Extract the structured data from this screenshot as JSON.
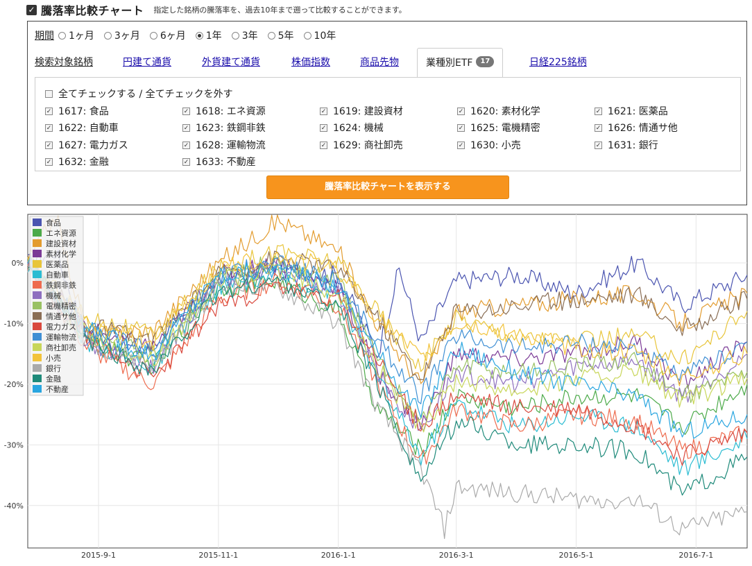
{
  "header": {
    "title": "騰落率比較チャート",
    "description": "指定した銘柄の騰落率を、過去10年まで遡って比較することができます。"
  },
  "period": {
    "label": "期間",
    "options": [
      "1ヶ月",
      "3ヶ月",
      "6ヶ月",
      "1年",
      "3年",
      "5年",
      "10年"
    ],
    "selected": "1年"
  },
  "tabs": [
    {
      "label": "検索対象銘柄"
    },
    {
      "label": "円建て通貨"
    },
    {
      "label": "外貨建て通貨"
    },
    {
      "label": "株価指数"
    },
    {
      "label": "商品先物"
    },
    {
      "label": "業種別ETF",
      "badge": "17",
      "active": true
    },
    {
      "label": "日経225銘柄"
    }
  ],
  "check_all_label": "全てチェックする / 全てチェックを外す",
  "etfs": [
    {
      "label": "1617: 食品",
      "checked": true
    },
    {
      "label": "1618: エネ資源",
      "checked": true
    },
    {
      "label": "1619: 建設資材",
      "checked": true
    },
    {
      "label": "1620: 素材化学",
      "checked": true
    },
    {
      "label": "1621: 医薬品",
      "checked": true
    },
    {
      "label": "1622: 自動車",
      "checked": true
    },
    {
      "label": "1623: 鉄鋼非鉄",
      "checked": true
    },
    {
      "label": "1624: 機械",
      "checked": true
    },
    {
      "label": "1625: 電機精密",
      "checked": true
    },
    {
      "label": "1626: 情通サ他",
      "checked": true
    },
    {
      "label": "1627: 電力ガス",
      "checked": true
    },
    {
      "label": "1628: 運輸物流",
      "checked": true
    },
    {
      "label": "1629: 商社卸売",
      "checked": true
    },
    {
      "label": "1630: 小売",
      "checked": true
    },
    {
      "label": "1631: 銀行",
      "checked": true
    },
    {
      "label": "1632: 金融",
      "checked": true
    },
    {
      "label": "1633: 不動産",
      "checked": true
    }
  ],
  "show_button": "騰落率比較チャートを表示する",
  "chart_data": {
    "type": "line",
    "x_ticks": [
      "2015-9-1",
      "2015-11-1",
      "2016-1-1",
      "2016-3-1",
      "2016-5-1",
      "2016-7-1"
    ],
    "y_ticks": [
      "0%",
      "-10%",
      "-20%",
      "-30%",
      "-40%"
    ],
    "y_tick_values": [
      0,
      -10,
      -20,
      -30,
      -40
    ],
    "ylim": [
      -47,
      8
    ],
    "xlim": [
      "2015-7-27",
      "2016-7-27"
    ],
    "grid": true,
    "legend_placement": "top-left",
    "series": [
      {
        "name": "食品",
        "color": "#4a54b0",
        "points": [
          [
            "2015-7-27",
            0
          ],
          [
            "2015-8-10",
            2
          ],
          [
            "2015-8-26",
            -12
          ],
          [
            "2015-9-29",
            -15
          ],
          [
            "2015-11-1",
            -3
          ],
          [
            "2015-12-1",
            -1
          ],
          [
            "2016-1-1",
            -2
          ],
          [
            "2016-1-21",
            -15
          ],
          [
            "2016-2-1",
            -1
          ],
          [
            "2016-2-12",
            -13
          ],
          [
            "2016-3-1",
            -3
          ],
          [
            "2016-4-1",
            -2
          ],
          [
            "2016-5-1",
            -5
          ],
          [
            "2016-6-1",
            0
          ],
          [
            "2016-6-24",
            -7
          ],
          [
            "2016-7-27",
            -2
          ]
        ]
      },
      {
        "name": "エネ資源",
        "color": "#4caa49",
        "points": [
          [
            "2015-7-27",
            0
          ],
          [
            "2015-8-26",
            -13
          ],
          [
            "2015-9-29",
            -17
          ],
          [
            "2015-11-1",
            -4
          ],
          [
            "2015-12-1",
            -3
          ],
          [
            "2016-1-1",
            -8
          ],
          [
            "2016-1-21",
            -24
          ],
          [
            "2016-2-12",
            -31
          ],
          [
            "2016-3-1",
            -22
          ],
          [
            "2016-4-1",
            -24
          ],
          [
            "2016-5-1",
            -22
          ],
          [
            "2016-6-1",
            -22
          ],
          [
            "2016-6-24",
            -27
          ],
          [
            "2016-7-27",
            -20
          ]
        ]
      },
      {
        "name": "建設資材",
        "color": "#e39c2f",
        "points": [
          [
            "2015-7-27",
            0
          ],
          [
            "2015-8-10",
            8
          ],
          [
            "2015-8-26",
            -12
          ],
          [
            "2015-9-29",
            -11
          ],
          [
            "2015-11-1",
            0
          ],
          [
            "2015-12-1",
            7
          ],
          [
            "2016-1-1",
            2
          ],
          [
            "2016-1-21",
            -10
          ],
          [
            "2016-2-12",
            -20
          ],
          [
            "2016-3-1",
            -8
          ],
          [
            "2016-4-1",
            -7
          ],
          [
            "2016-5-1",
            -6
          ],
          [
            "2016-6-1",
            -5
          ],
          [
            "2016-6-24",
            -10
          ],
          [
            "2016-7-27",
            -5
          ]
        ]
      },
      {
        "name": "素材化学",
        "color": "#7b3a96",
        "points": [
          [
            "2015-7-27",
            0
          ],
          [
            "2015-8-26",
            -11
          ],
          [
            "2015-9-29",
            -14
          ],
          [
            "2015-11-1",
            -2
          ],
          [
            "2015-12-1",
            0
          ],
          [
            "2016-1-1",
            -4
          ],
          [
            "2016-1-21",
            -18
          ],
          [
            "2016-2-12",
            -27
          ],
          [
            "2016-3-1",
            -15
          ],
          [
            "2016-4-1",
            -16
          ],
          [
            "2016-5-1",
            -15
          ],
          [
            "2016-6-1",
            -13
          ],
          [
            "2016-6-24",
            -20
          ],
          [
            "2016-7-27",
            -13
          ]
        ]
      },
      {
        "name": "医薬品",
        "color": "#e8c53a",
        "points": [
          [
            "2015-7-27",
            0
          ],
          [
            "2015-8-26",
            -9
          ],
          [
            "2015-9-29",
            -12
          ],
          [
            "2015-11-1",
            -1
          ],
          [
            "2015-12-1",
            2
          ],
          [
            "2016-1-1",
            0
          ],
          [
            "2016-1-21",
            -8
          ],
          [
            "2016-2-12",
            -17
          ],
          [
            "2016-3-1",
            -9
          ],
          [
            "2016-4-1",
            -12
          ],
          [
            "2016-5-1",
            -13
          ],
          [
            "2016-6-1",
            -12
          ],
          [
            "2016-6-24",
            -16
          ],
          [
            "2016-7-27",
            -8
          ]
        ]
      },
      {
        "name": "自動車",
        "color": "#2bbcd2",
        "points": [
          [
            "2015-7-27",
            0
          ],
          [
            "2015-8-26",
            -13
          ],
          [
            "2015-9-29",
            -17
          ],
          [
            "2015-11-1",
            -4
          ],
          [
            "2015-12-1",
            -2
          ],
          [
            "2016-1-1",
            -5
          ],
          [
            "2016-1-21",
            -19
          ],
          [
            "2016-2-12",
            -32
          ],
          [
            "2016-3-1",
            -23
          ],
          [
            "2016-4-1",
            -27
          ],
          [
            "2016-5-1",
            -25
          ],
          [
            "2016-6-1",
            -27
          ],
          [
            "2016-6-24",
            -34
          ],
          [
            "2016-7-27",
            -29
          ]
        ]
      },
      {
        "name": "鉄鋼非鉄",
        "color": "#ee6c4f",
        "points": [
          [
            "2015-7-27",
            0
          ],
          [
            "2015-8-26",
            -14
          ],
          [
            "2015-9-29",
            -20
          ],
          [
            "2015-11-1",
            -6
          ],
          [
            "2015-12-1",
            -3
          ],
          [
            "2016-1-1",
            -7
          ],
          [
            "2016-1-21",
            -20
          ],
          [
            "2016-2-12",
            -33
          ],
          [
            "2016-3-1",
            -24
          ],
          [
            "2016-4-1",
            -27
          ],
          [
            "2016-5-1",
            -25
          ],
          [
            "2016-6-1",
            -26
          ],
          [
            "2016-6-24",
            -31
          ],
          [
            "2016-7-27",
            -28
          ]
        ]
      },
      {
        "name": "機械",
        "color": "#8e6fbf",
        "points": [
          [
            "2015-7-27",
            0
          ],
          [
            "2015-8-26",
            -13
          ],
          [
            "2015-9-29",
            -17
          ],
          [
            "2015-11-1",
            -3
          ],
          [
            "2015-12-1",
            -1
          ],
          [
            "2016-1-1",
            -5
          ],
          [
            "2016-1-21",
            -18
          ],
          [
            "2016-2-12",
            -28
          ],
          [
            "2016-3-1",
            -18
          ],
          [
            "2016-4-1",
            -20
          ],
          [
            "2016-5-1",
            -17
          ],
          [
            "2016-6-1",
            -16
          ],
          [
            "2016-6-24",
            -22
          ],
          [
            "2016-7-27",
            -15
          ]
        ]
      },
      {
        "name": "電機精密",
        "color": "#99c163",
        "points": [
          [
            "2015-7-27",
            0
          ],
          [
            "2015-8-26",
            -12
          ],
          [
            "2015-9-29",
            -15
          ],
          [
            "2015-11-1",
            -2
          ],
          [
            "2015-12-1",
            0
          ],
          [
            "2016-1-1",
            -3
          ],
          [
            "2016-1-21",
            -16
          ],
          [
            "2016-2-12",
            -26
          ],
          [
            "2016-3-1",
            -17
          ],
          [
            "2016-4-1",
            -18
          ],
          [
            "2016-5-1",
            -17
          ],
          [
            "2016-6-1",
            -16
          ],
          [
            "2016-6-24",
            -22
          ],
          [
            "2016-7-27",
            -18
          ]
        ]
      },
      {
        "name": "情通サ他",
        "color": "#8a6e55",
        "points": [
          [
            "2015-7-27",
            0
          ],
          [
            "2015-8-26",
            -10
          ],
          [
            "2015-9-29",
            -13
          ],
          [
            "2015-11-1",
            -2
          ],
          [
            "2015-12-1",
            1
          ],
          [
            "2016-1-1",
            -1
          ],
          [
            "2016-1-21",
            -9
          ],
          [
            "2016-2-12",
            -19
          ],
          [
            "2016-3-1",
            -8
          ],
          [
            "2016-4-1",
            -7
          ],
          [
            "2016-5-1",
            -6
          ],
          [
            "2016-6-1",
            -5
          ],
          [
            "2016-6-24",
            -11
          ],
          [
            "2016-7-27",
            -6
          ]
        ]
      },
      {
        "name": "電力ガス",
        "color": "#d9493e",
        "points": [
          [
            "2015-7-27",
            0
          ],
          [
            "2015-8-26",
            -12
          ],
          [
            "2015-9-29",
            -19
          ],
          [
            "2015-11-1",
            -7
          ],
          [
            "2015-12-1",
            -4
          ],
          [
            "2016-1-1",
            -6
          ],
          [
            "2016-1-21",
            -16
          ],
          [
            "2016-2-12",
            -27
          ],
          [
            "2016-3-1",
            -22
          ],
          [
            "2016-4-1",
            -24
          ],
          [
            "2016-5-1",
            -24
          ],
          [
            "2016-6-1",
            -27
          ],
          [
            "2016-6-24",
            -32
          ],
          [
            "2016-7-27",
            -28
          ]
        ]
      },
      {
        "name": "運輸物流",
        "color": "#3f8fd4",
        "points": [
          [
            "2015-7-27",
            0
          ],
          [
            "2015-8-26",
            -11
          ],
          [
            "2015-9-29",
            -14
          ],
          [
            "2015-11-1",
            -2
          ],
          [
            "2015-12-1",
            0
          ],
          [
            "2016-1-1",
            -3
          ],
          [
            "2016-1-21",
            -13
          ],
          [
            "2016-2-12",
            -22
          ],
          [
            "2016-3-1",
            -12
          ],
          [
            "2016-4-1",
            -14
          ],
          [
            "2016-5-1",
            -13
          ],
          [
            "2016-6-1",
            -14
          ],
          [
            "2016-6-24",
            -19
          ],
          [
            "2016-7-27",
            -13
          ]
        ]
      },
      {
        "name": "商社卸売",
        "color": "#c8d65a",
        "points": [
          [
            "2015-7-27",
            0
          ],
          [
            "2015-8-26",
            -12
          ],
          [
            "2015-9-29",
            -16
          ],
          [
            "2015-11-1",
            -3
          ],
          [
            "2015-12-1",
            -1
          ],
          [
            "2016-1-1",
            -5
          ],
          [
            "2016-1-21",
            -17
          ],
          [
            "2016-2-12",
            -28
          ],
          [
            "2016-3-1",
            -19
          ],
          [
            "2016-4-1",
            -21
          ],
          [
            "2016-5-1",
            -19
          ],
          [
            "2016-6-1",
            -18
          ],
          [
            "2016-6-24",
            -23
          ],
          [
            "2016-7-27",
            -19
          ]
        ]
      },
      {
        "name": "小売",
        "color": "#f2c33b",
        "points": [
          [
            "2015-7-27",
            0
          ],
          [
            "2015-8-26",
            -10
          ],
          [
            "2015-9-29",
            -13
          ],
          [
            "2015-11-1",
            -1
          ],
          [
            "2015-12-1",
            1
          ],
          [
            "2016-1-1",
            -1
          ],
          [
            "2016-1-21",
            -9
          ],
          [
            "2016-2-12",
            -16
          ],
          [
            "2016-3-1",
            -10
          ],
          [
            "2016-4-1",
            -12
          ],
          [
            "2016-5-1",
            -14
          ],
          [
            "2016-6-1",
            -15
          ],
          [
            "2016-6-24",
            -19
          ],
          [
            "2016-7-27",
            -15
          ]
        ]
      },
      {
        "name": "銀行",
        "color": "#aaaaaa",
        "points": [
          [
            "2015-7-27",
            0
          ],
          [
            "2015-8-26",
            -13
          ],
          [
            "2015-9-29",
            -17
          ],
          [
            "2015-11-1",
            -4
          ],
          [
            "2015-12-1",
            -4
          ],
          [
            "2016-1-1",
            -10
          ],
          [
            "2016-1-21",
            -24
          ],
          [
            "2016-2-12",
            -34
          ],
          [
            "2016-2-24",
            -44
          ],
          [
            "2016-3-1",
            -37
          ],
          [
            "2016-4-1",
            -38
          ],
          [
            "2016-5-1",
            -39
          ],
          [
            "2016-6-1",
            -39
          ],
          [
            "2016-6-24",
            -44
          ],
          [
            "2016-7-27",
            -41
          ]
        ]
      },
      {
        "name": "金融",
        "color": "#1e8a7a",
        "points": [
          [
            "2015-7-27",
            0
          ],
          [
            "2015-8-26",
            -13
          ],
          [
            "2015-9-29",
            -18
          ],
          [
            "2015-11-1",
            -5
          ],
          [
            "2015-12-1",
            -3
          ],
          [
            "2016-1-1",
            -7
          ],
          [
            "2016-1-21",
            -20
          ],
          [
            "2016-2-12",
            -36
          ],
          [
            "2016-3-1",
            -26
          ],
          [
            "2016-4-1",
            -30
          ],
          [
            "2016-5-1",
            -30
          ],
          [
            "2016-6-1",
            -31
          ],
          [
            "2016-6-24",
            -38
          ],
          [
            "2016-7-27",
            -32
          ]
        ]
      },
      {
        "name": "不動産",
        "color": "#2aa6e0",
        "points": [
          [
            "2015-7-27",
            0
          ],
          [
            "2015-8-26",
            -11
          ],
          [
            "2015-9-29",
            -15
          ],
          [
            "2015-11-1",
            -2
          ],
          [
            "2015-12-1",
            -1
          ],
          [
            "2016-1-1",
            -4
          ],
          [
            "2016-1-21",
            -15
          ],
          [
            "2016-2-12",
            -25
          ],
          [
            "2016-3-1",
            -14
          ],
          [
            "2016-4-1",
            -18
          ],
          [
            "2016-5-1",
            -20
          ],
          [
            "2016-6-1",
            -22
          ],
          [
            "2016-6-24",
            -28
          ],
          [
            "2016-7-27",
            -25
          ]
        ]
      }
    ]
  }
}
